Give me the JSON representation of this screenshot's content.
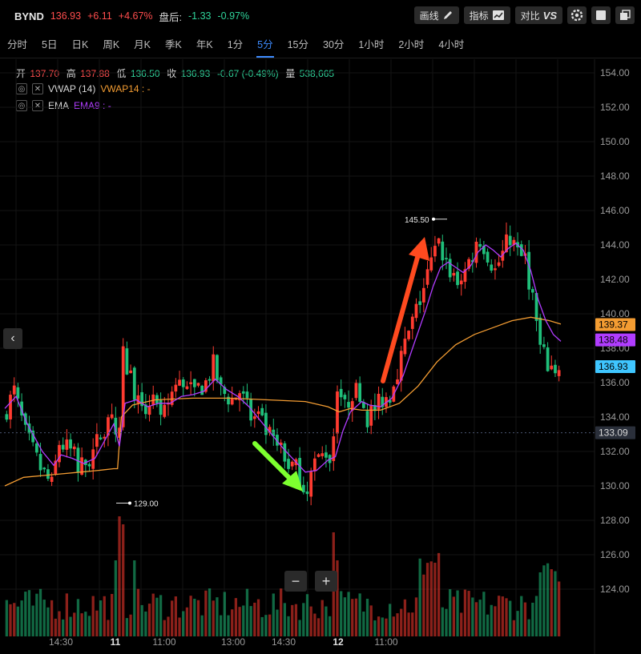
{
  "header": {
    "symbol": "BYND",
    "price": "136.93",
    "change": "+6.11",
    "change_pct": "+4.67%",
    "after_hours_label": "盘后:",
    "after_change": "-1.33",
    "after_change_pct": "-0.97%",
    "buttons": [
      {
        "label": "画线",
        "icon": "pencil-icon"
      },
      {
        "label": "指标",
        "icon": "indicator-chart-icon"
      },
      {
        "label": "对比",
        "icon": "vs-icon",
        "badge": "VS"
      }
    ],
    "icon_buttons": [
      "settings-icon",
      "square-icon",
      "layers-icon"
    ]
  },
  "intervals": {
    "items": [
      "分时",
      "5日",
      "日K",
      "周K",
      "月K",
      "季K",
      "年K",
      "1分",
      "5分",
      "15分",
      "30分",
      "1小时",
      "2小时",
      "4小时"
    ],
    "active": "5分"
  },
  "ohlc": {
    "open_label": "开",
    "open": "137.70",
    "high_label": "高",
    "high": "137.88",
    "low_label": "低",
    "low": "136.50",
    "close_label": "收",
    "close": "136.93",
    "change": "-0.67 (-0.49%)",
    "volume_label": "量",
    "volume": "538,665"
  },
  "indicators": [
    {
      "name": "VWAP (14)",
      "value_label": "VWAP14 : -",
      "color": "#f39c32"
    },
    {
      "name": "EMA",
      "value_label": "EMA9 : -",
      "color": "#b03cff"
    }
  ],
  "zoom": {
    "minus": "−",
    "plus": "+"
  },
  "nav_left": "‹",
  "chart_data": {
    "type": "candlestick",
    "y_axis": {
      "range": [
        122.5,
        155
      ],
      "ticks": [
        "154.00",
        "152.00",
        "150.00",
        "148.00",
        "146.00",
        "144.00",
        "142.00",
        "140.00",
        "138.00",
        "136.00",
        "134.00",
        "132.00",
        "130.00",
        "128.00",
        "126.00",
        "124.00"
      ]
    },
    "x_ticks": [
      "14:30",
      "11",
      "11:00",
      "13:00",
      "14:30",
      "12",
      "11:00"
    ],
    "price_tags": [
      {
        "value": 139.37,
        "label": "139.37",
        "color": "#f39c32"
      },
      {
        "value": 138.48,
        "label": "138.48",
        "color": "#b03cff"
      },
      {
        "value": 136.93,
        "label": "136.93",
        "color": "#3fc6ff"
      },
      {
        "value": 133.09,
        "label": "133.09",
        "color": "#2a2f3a"
      }
    ],
    "annotations": [
      {
        "label": "145.50",
        "value": 145.5
      },
      {
        "label": "129.00",
        "value": 129.0
      }
    ],
    "close_path": [
      [
        0,
        134.0
      ],
      [
        3,
        135.5
      ],
      [
        6,
        133.0
      ],
      [
        10,
        131.0
      ],
      [
        13,
        130.0
      ],
      [
        15,
        132.5
      ],
      [
        18,
        132.0
      ],
      [
        20,
        131.0
      ],
      [
        23,
        131.5
      ],
      [
        27,
        133.5
      ],
      [
        29,
        134.5
      ],
      [
        30,
        133.0
      ],
      [
        30.5,
        130.5
      ],
      [
        32,
        137.5
      ],
      [
        35,
        135.5
      ],
      [
        37,
        134.0
      ],
      [
        40,
        135.5
      ],
      [
        42,
        133.5
      ],
      [
        45,
        135.5
      ],
      [
        48,
        136.0
      ],
      [
        51,
        135.5
      ],
      [
        54,
        136.0
      ],
      [
        56,
        137.0
      ],
      [
        58,
        135.5
      ],
      [
        61,
        135.0
      ],
      [
        63,
        135.5
      ],
      [
        66,
        134.0
      ],
      [
        69,
        133.5
      ],
      [
        72,
        132.5
      ],
      [
        75,
        131.5
      ],
      [
        78,
        131.0
      ],
      [
        80,
        130.0
      ],
      [
        82,
        130.5
      ],
      [
        84,
        131.5
      ],
      [
        86,
        132.0
      ],
      [
        87.5,
        131.5
      ],
      [
        89,
        136.0
      ],
      [
        91,
        134.5
      ],
      [
        93,
        135.5
      ],
      [
        95,
        135.5
      ],
      [
        97,
        134.0
      ],
      [
        99,
        134.5
      ],
      [
        101,
        135.0
      ],
      [
        103,
        135.5
      ],
      [
        106,
        137.5
      ],
      [
        109,
        139.5
      ],
      [
        112,
        141.5
      ],
      [
        114,
        143.0
      ],
      [
        116,
        144.0
      ],
      [
        117,
        143.5
      ],
      [
        119,
        142.5
      ],
      [
        121,
        142.0
      ],
      [
        123,
        142.5
      ],
      [
        125,
        143.5
      ],
      [
        127,
        144.5
      ],
      [
        129,
        143.5
      ],
      [
        131,
        142.5
      ],
      [
        133,
        143.5
      ],
      [
        135,
        144.5
      ],
      [
        137,
        143.5
      ],
      [
        139,
        143.0
      ],
      [
        141,
        141.0
      ],
      [
        142,
        139.5
      ],
      [
        143,
        138.0
      ],
      [
        145,
        137.0
      ],
      [
        147,
        136.8
      ],
      [
        148,
        137.0
      ]
    ],
    "vwap_path": [
      [
        0,
        130.0
      ],
      [
        5,
        130.5
      ],
      [
        10,
        130.6
      ],
      [
        15,
        130.7
      ],
      [
        20,
        130.8
      ],
      [
        25,
        130.9
      ],
      [
        29,
        131.0
      ],
      [
        30,
        131.0
      ],
      [
        31,
        134.0
      ],
      [
        34,
        134.7
      ],
      [
        40,
        135.0
      ],
      [
        50,
        135.1
      ],
      [
        60,
        135.1
      ],
      [
        70,
        135.0
      ],
      [
        80,
        134.9
      ],
      [
        86,
        134.6
      ],
      [
        88,
        134.4
      ],
      [
        89,
        134.3
      ],
      [
        92,
        134.5
      ],
      [
        95,
        134.4
      ],
      [
        100,
        134.4
      ],
      [
        105,
        134.8
      ],
      [
        110,
        135.8
      ],
      [
        115,
        137.2
      ],
      [
        120,
        138.2
      ],
      [
        125,
        138.8
      ],
      [
        130,
        139.2
      ],
      [
        135,
        139.6
      ],
      [
        140,
        139.8
      ],
      [
        145,
        139.6
      ],
      [
        148,
        139.4
      ]
    ],
    "ema_path": [
      [
        0,
        134.5
      ],
      [
        3,
        135.2
      ],
      [
        6,
        133.6
      ],
      [
        10,
        132.0
      ],
      [
        13,
        131.2
      ],
      [
        15,
        131.8
      ],
      [
        18,
        131.6
      ],
      [
        21,
        131.3
      ],
      [
        24,
        131.6
      ],
      [
        27,
        132.8
      ],
      [
        29,
        133.6
      ],
      [
        30.5,
        132.3
      ],
      [
        32,
        134.8
      ],
      [
        35,
        135.0
      ],
      [
        38,
        134.6
      ],
      [
        41,
        134.8
      ],
      [
        44,
        134.8
      ],
      [
        47,
        135.2
      ],
      [
        50,
        135.3
      ],
      [
        53,
        135.5
      ],
      [
        56,
        136.2
      ],
      [
        59,
        135.6
      ],
      [
        62,
        135.2
      ],
      [
        65,
        134.6
      ],
      [
        68,
        133.8
      ],
      [
        71,
        133.0
      ],
      [
        74,
        132.2
      ],
      [
        77,
        131.5
      ],
      [
        80,
        130.8
      ],
      [
        83,
        130.9
      ],
      [
        86,
        131.5
      ],
      [
        88,
        131.7
      ],
      [
        90,
        133.2
      ],
      [
        92,
        134.3
      ],
      [
        95,
        134.9
      ],
      [
        97,
        134.7
      ],
      [
        100,
        134.6
      ],
      [
        103,
        135.1
      ],
      [
        106,
        136.4
      ],
      [
        109,
        138.3
      ],
      [
        112,
        140.2
      ],
      [
        114,
        141.6
      ],
      [
        116,
        142.7
      ],
      [
        118,
        143.0
      ],
      [
        120,
        142.7
      ],
      [
        122,
        142.4
      ],
      [
        124,
        142.8
      ],
      [
        126,
        143.6
      ],
      [
        128,
        144.0
      ],
      [
        130,
        143.7
      ],
      [
        132,
        143.3
      ],
      [
        134,
        143.8
      ],
      [
        136,
        144.1
      ],
      [
        138,
        143.7
      ],
      [
        140,
        142.5
      ],
      [
        142,
        140.8
      ],
      [
        144,
        139.6
      ],
      [
        146,
        138.8
      ],
      [
        148,
        138.4
      ]
    ]
  }
}
